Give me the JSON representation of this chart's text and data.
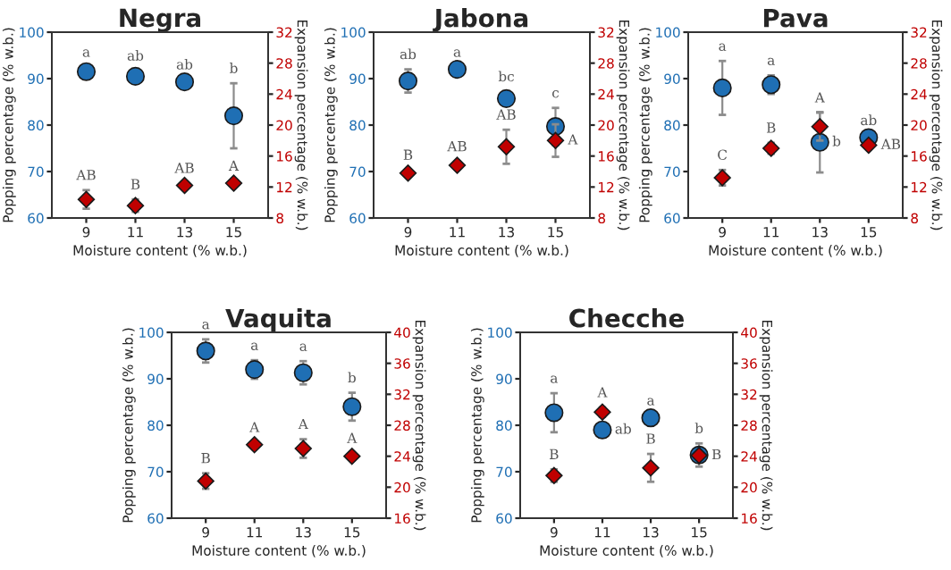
{
  "chart_data": [
    {
      "type": "scatter",
      "title": "Negra",
      "xlabel": "Moisture content (% w.b.)",
      "ylabel": "Popping percentage (% w.b.)",
      "y2label": "Expansion percentage (% w.b.)",
      "categories": [
        "9",
        "11",
        "13",
        "15"
      ],
      "ylim": [
        60,
        100
      ],
      "yticks": [
        60,
        70,
        80,
        90,
        100
      ],
      "y2lim": [
        8,
        32
      ],
      "y2ticks": [
        8,
        12,
        16,
        20,
        24,
        28,
        32
      ],
      "grid": false,
      "legend": false,
      "series": [
        {
          "color": "#1f6fb4",
          "marker": "circle",
          "values": [
            91.5,
            90.5,
            89.3,
            82
          ],
          "errors": [
            1,
            1.2,
            0.5,
            7
          ]
        },
        {
          "color": "#c00000",
          "marker": "diamond",
          "axis": "y2",
          "values": [
            10.4,
            9.6,
            12.2,
            12.5
          ],
          "errors": [
            1.2,
            0.8,
            0.3,
            0.3
          ]
        }
      ],
      "annotations": [
        "a",
        "ab",
        "ab",
        "b",
        "AB",
        "B",
        "AB",
        "A"
      ]
    },
    {
      "type": "scatter",
      "title": "Jabona",
      "xlabel": "Moisture content (% w.b.)",
      "ylabel": "Popping percentage (% w.b.)",
      "y2label": "Expansion percentage (% w.b.)",
      "categories": [
        "9",
        "11",
        "13",
        "15"
      ],
      "ylim": [
        60,
        100
      ],
      "yticks": [
        60,
        70,
        80,
        90,
        100
      ],
      "y2lim": [
        8,
        32
      ],
      "y2ticks": [
        8,
        12,
        16,
        20,
        24,
        28,
        32
      ],
      "grid": false,
      "legend": false,
      "series": [
        {
          "color": "#1f6fb4",
          "marker": "circle",
          "values": [
            89.5,
            92,
            85.7,
            79.7
          ],
          "errors": [
            2.5,
            0.5,
            1.5,
            4
          ]
        },
        {
          "color": "#c00000",
          "marker": "diamond",
          "axis": "y2",
          "values": [
            13.8,
            14.8,
            17.2,
            18
          ],
          "errors": [
            0.4,
            0.5,
            2.2,
            2.1
          ]
        }
      ],
      "annotations": [
        "ab",
        "a",
        "bc",
        "c",
        "B",
        "AB",
        "AB",
        "A"
      ]
    },
    {
      "type": "scatter",
      "title": "Pava",
      "xlabel": "Moisture content (% w.b.)",
      "ylabel": "Popping percentage (% w.b.)",
      "y2label": "Expansion percentage (% w.b.)",
      "categories": [
        "9",
        "11",
        "13",
        "15"
      ],
      "ylim": [
        60,
        100
      ],
      "yticks": [
        60,
        70,
        80,
        90,
        100
      ],
      "y2lim": [
        8,
        32
      ],
      "y2ticks": [
        8,
        12,
        16,
        20,
        24,
        28,
        32
      ],
      "grid": false,
      "legend": false,
      "series": [
        {
          "color": "#1f6fb4",
          "marker": "circle",
          "values": [
            88,
            88.7,
            76.3,
            77.3
          ],
          "errors": [
            5.8,
            2,
            6.5,
            0.5
          ]
        },
        {
          "color": "#c00000",
          "marker": "diamond",
          "axis": "y2",
          "values": [
            13.2,
            17,
            19.8,
            17.4
          ],
          "errors": [
            1,
            0.7,
            1.8,
            0.4
          ]
        }
      ],
      "annotations": [
        "a",
        "a",
        "b",
        "ab",
        "C",
        "B",
        "A",
        "AB"
      ]
    },
    {
      "type": "scatter",
      "title": "Vaquita",
      "xlabel": "Moisture content (% w.b.)",
      "ylabel": "Popping percentage (% w.b.)",
      "y2label": "Expansion percentage (% w.b.)",
      "categories": [
        "9",
        "11",
        "13",
        "15"
      ],
      "ylim": [
        60,
        100
      ],
      "yticks": [
        60,
        70,
        80,
        90,
        100
      ],
      "y2lim": [
        16,
        40
      ],
      "y2ticks": [
        16,
        20,
        24,
        28,
        32,
        36,
        40
      ],
      "grid": false,
      "legend": false,
      "series": [
        {
          "color": "#1f6fb4",
          "marker": "circle",
          "values": [
            96,
            92,
            91.3,
            84
          ],
          "errors": [
            2.5,
            2,
            2.5,
            3
          ]
        },
        {
          "color": "#c00000",
          "marker": "diamond",
          "axis": "y2",
          "values": [
            20.8,
            25.5,
            25,
            24
          ],
          "errors": [
            1,
            0.3,
            1.2,
            0.4
          ]
        }
      ],
      "annotations": [
        "a",
        "a",
        "a",
        "b",
        "B",
        "A",
        "A",
        "A"
      ]
    },
    {
      "type": "scatter",
      "title": "Checche",
      "xlabel": "Moisture content (% w.b.)",
      "ylabel": "Popping percentage (% w.b.)",
      "y2label": "Expansion percentage (% w.b.)",
      "categories": [
        "9",
        "11",
        "13",
        "15"
      ],
      "ylim": [
        60,
        100
      ],
      "yticks": [
        60,
        70,
        80,
        90,
        100
      ],
      "y2lim": [
        16,
        40
      ],
      "y2ticks": [
        16,
        20,
        24,
        28,
        32,
        36,
        40
      ],
      "grid": false,
      "legend": false,
      "series": [
        {
          "color": "#1f6fb4",
          "marker": "circle",
          "values": [
            82.7,
            79,
            81.6,
            73.6
          ],
          "errors": [
            4.2,
            0.5,
            0.5,
            2.5
          ]
        },
        {
          "color": "#c00000",
          "marker": "diamond",
          "axis": "y2",
          "values": [
            21.5,
            29.7,
            22.5,
            24.1
          ],
          "errors": [
            0.8,
            0.6,
            1.8,
            0.5
          ]
        }
      ],
      "annotations": [
        "a",
        "ab",
        "a",
        "b",
        "B",
        "A",
        "B",
        "B"
      ]
    }
  ]
}
